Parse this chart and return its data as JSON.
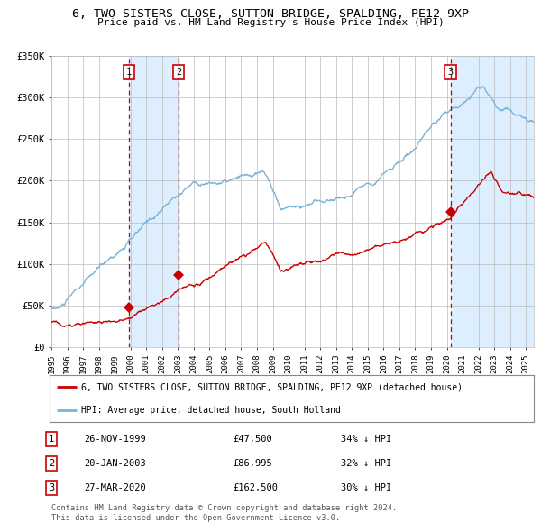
{
  "title": "6, TWO SISTERS CLOSE, SUTTON BRIDGE, SPALDING, PE12 9XP",
  "subtitle": "Price paid vs. HM Land Registry's House Price Index (HPI)",
  "legend_line1": "6, TWO SISTERS CLOSE, SUTTON BRIDGE, SPALDING, PE12 9XP (detached house)",
  "legend_line2": "HPI: Average price, detached house, South Holland",
  "footer1": "Contains HM Land Registry data © Crown copyright and database right 2024.",
  "footer2": "This data is licensed under the Open Government Licence v3.0.",
  "transactions": [
    {
      "num": 1,
      "date": "26-NOV-1999",
      "price": 47500,
      "pct": "34%",
      "dir": "↓",
      "x": 1999.9
    },
    {
      "num": 2,
      "date": "20-JAN-2003",
      "price": 86995,
      "pct": "32%",
      "dir": "↓",
      "x": 2003.05
    },
    {
      "num": 3,
      "date": "27-MAR-2020",
      "price": 162500,
      "pct": "30%",
      "dir": "↓",
      "x": 2020.23
    }
  ],
  "hpi_color": "#7ab3d8",
  "price_color": "#cc0000",
  "vline_color": "#cc0000",
  "shade_color": "#ddeeff",
  "background_color": "#ffffff",
  "grid_color": "#bbbbbb",
  "ylim": [
    0,
    350000
  ],
  "xlim": [
    1995.0,
    2025.5
  ]
}
